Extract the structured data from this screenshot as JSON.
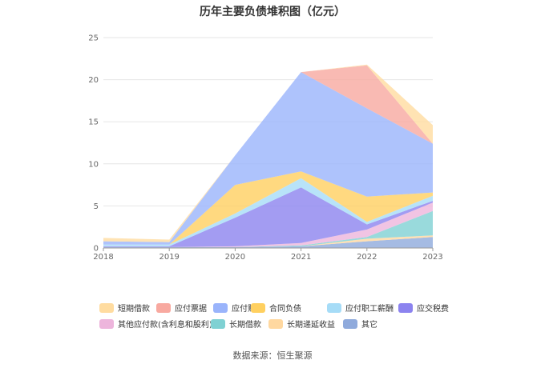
{
  "chart_data": {
    "type": "area",
    "stacked": true,
    "title": "历年主要负债堆积图（亿元）",
    "categories": [
      "2018",
      "2019",
      "2020",
      "2021",
      "2022",
      "2023"
    ],
    "ylim": [
      0,
      25
    ],
    "yticks": [
      0,
      5,
      10,
      15,
      20,
      25
    ],
    "grid": true,
    "legend_position": "bottom",
    "series": [
      {
        "name": "其它",
        "color": "#8FAADC",
        "values": [
          0.1,
          0.1,
          0.1,
          0.2,
          0.8,
          1.3
        ]
      },
      {
        "name": "长期递延收益",
        "color": "#FFD8A0",
        "values": [
          0.0,
          0.0,
          0.0,
          0.0,
          0.3,
          0.2
        ]
      },
      {
        "name": "长期借款",
        "color": "#7FD1D3",
        "values": [
          0.0,
          0.0,
          0.0,
          0.1,
          0.2,
          2.9
        ]
      },
      {
        "name": "其他应付款(含利息和股利)",
        "color": "#EDB5DC",
        "values": [
          0.0,
          0.0,
          0.1,
          0.3,
          0.9,
          1.0
        ]
      },
      {
        "name": "应交税费",
        "color": "#8C83EF",
        "values": [
          0.1,
          0.1,
          3.4,
          6.6,
          0.6,
          0.2
        ]
      },
      {
        "name": "应付职工薪酬",
        "color": "#A6DCF7",
        "values": [
          0.2,
          0.2,
          0.5,
          1.1,
          0.3,
          0.6
        ]
      },
      {
        "name": "合同负债",
        "color": "#FFD060",
        "values": [
          0.0,
          0.0,
          3.4,
          0.8,
          3.0,
          0.4
        ]
      },
      {
        "name": "应付账款",
        "color": "#9AB4FB",
        "values": [
          0.4,
          0.3,
          3.5,
          11.8,
          10.5,
          5.8
        ]
      },
      {
        "name": "应付票据",
        "color": "#F8A9A0",
        "values": [
          0.0,
          0.0,
          0.0,
          0.0,
          5.1,
          0.0
        ]
      },
      {
        "name": "短期借款",
        "color": "#FFDCA0",
        "values": [
          0.4,
          0.3,
          0.0,
          0.0,
          0.1,
          2.2
        ]
      }
    ],
    "legend_order": [
      "短期借款",
      "应付票据",
      "应付账款",
      "合同负债",
      "应付职工薪酬",
      "应交税费",
      "其他应付款(含利息和股利)",
      "长期借款",
      "长期递延收益",
      "其它"
    ]
  },
  "source_label": "数据来源：恒生聚源"
}
